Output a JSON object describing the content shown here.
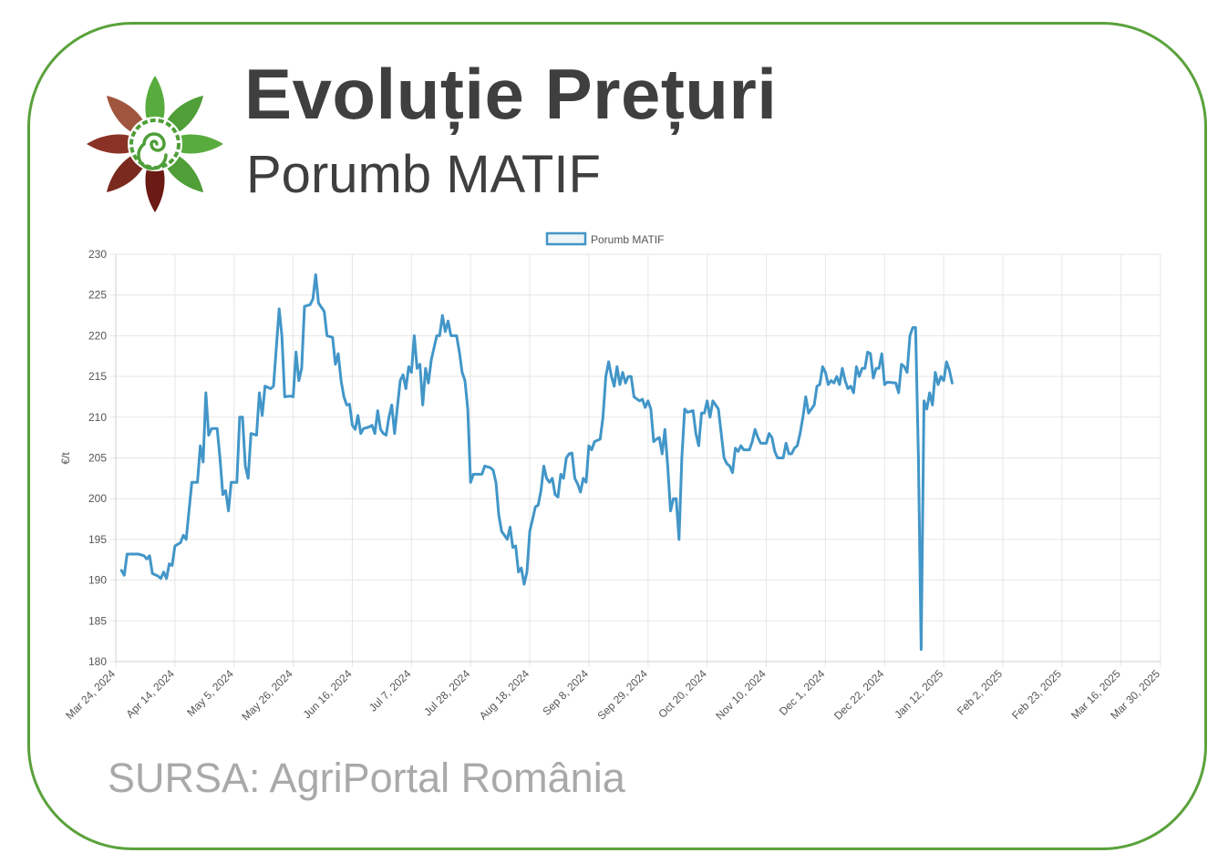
{
  "header": {
    "title": "Evoluție Prețuri",
    "subtitle": "Porumb MATIF"
  },
  "footer": {
    "source": "SURSA: AgriPortal România"
  },
  "colors": {
    "frame": "#5aa23c",
    "line": "#4296c8",
    "grid": "#e6e6e6",
    "title": "#3f3f3f",
    "source": "#a9a9a9"
  },
  "chart_data": {
    "type": "line",
    "ylabel": "€/t",
    "ylim": [
      180,
      230
    ],
    "yticks": [
      180,
      185,
      190,
      195,
      200,
      205,
      210,
      215,
      220,
      225,
      230
    ],
    "xlim": [
      "2024-03-24",
      "2025-03-30"
    ],
    "xticks": [
      "Mar 24, 2024",
      "Apr 14, 2024",
      "May 5, 2024",
      "May 26, 2024",
      "Jun 16, 2024",
      "Jul 7, 2024",
      "Jul 28, 2024",
      "Aug 18, 2024",
      "Sep 8, 2024",
      "Sep 29, 2024",
      "Oct 20, 2024",
      "Nov 10, 2024",
      "Dec 1, 2024",
      "Dec 22, 2024",
      "Jan 12, 2025",
      "Feb 2, 2025",
      "Feb 23, 2025",
      "Mar 16, 2025",
      "Mar 30, 2025"
    ],
    "grid": true,
    "legend_position": "top-center",
    "series": [
      {
        "name": "Porumb MATIF",
        "points": [
          [
            "2024-03-26",
            191.2
          ],
          [
            "2024-03-27",
            190.6
          ],
          [
            "2024-03-28",
            193.2
          ],
          [
            "2024-04-01",
            193.2
          ],
          [
            "2024-04-03",
            193.0
          ],
          [
            "2024-04-04",
            192.6
          ],
          [
            "2024-04-05",
            193.0
          ],
          [
            "2024-04-06",
            190.8
          ],
          [
            "2024-04-08",
            190.5
          ],
          [
            "2024-04-09",
            190.2
          ],
          [
            "2024-04-10",
            191.0
          ],
          [
            "2024-04-11",
            190.2
          ],
          [
            "2024-04-12",
            192.0
          ],
          [
            "2024-04-13",
            191.8
          ],
          [
            "2024-04-14",
            194.2
          ],
          [
            "2024-04-16",
            194.6
          ],
          [
            "2024-04-17",
            195.5
          ],
          [
            "2024-04-18",
            195.0
          ],
          [
            "2024-04-19",
            198.5
          ],
          [
            "2024-04-20",
            202.0
          ],
          [
            "2024-04-22",
            202.0
          ],
          [
            "2024-04-23",
            206.5
          ],
          [
            "2024-04-24",
            204.5
          ],
          [
            "2024-04-25",
            213.0
          ],
          [
            "2024-04-26",
            207.8
          ],
          [
            "2024-04-27",
            208.6
          ],
          [
            "2024-04-29",
            208.6
          ],
          [
            "2024-04-30",
            205.0
          ],
          [
            "2024-05-01",
            200.5
          ],
          [
            "2024-05-02",
            201.0
          ],
          [
            "2024-05-03",
            198.5
          ],
          [
            "2024-05-04",
            202.0
          ],
          [
            "2024-05-06",
            202.0
          ],
          [
            "2024-05-07",
            210.0
          ],
          [
            "2024-05-08",
            210.0
          ],
          [
            "2024-05-09",
            204.0
          ],
          [
            "2024-05-10",
            202.5
          ],
          [
            "2024-05-11",
            208.0
          ],
          [
            "2024-05-13",
            207.8
          ],
          [
            "2024-05-14",
            213.0
          ],
          [
            "2024-05-15",
            210.2
          ],
          [
            "2024-05-16",
            213.8
          ],
          [
            "2024-05-18",
            213.5
          ],
          [
            "2024-05-19",
            213.8
          ],
          [
            "2024-05-21",
            223.3
          ],
          [
            "2024-05-22",
            220.0
          ],
          [
            "2024-05-23",
            212.5
          ],
          [
            "2024-05-25",
            212.6
          ],
          [
            "2024-05-26",
            212.5
          ],
          [
            "2024-05-27",
            218.0
          ],
          [
            "2024-05-28",
            214.5
          ],
          [
            "2024-05-29",
            216.0
          ],
          [
            "2024-05-30",
            223.6
          ],
          [
            "2024-06-01",
            223.8
          ],
          [
            "2024-06-02",
            224.5
          ],
          [
            "2024-06-03",
            227.5
          ],
          [
            "2024-06-04",
            224.0
          ],
          [
            "2024-06-05",
            223.5
          ],
          [
            "2024-06-06",
            223.0
          ],
          [
            "2024-06-07",
            220.0
          ],
          [
            "2024-06-09",
            219.8
          ],
          [
            "2024-06-10",
            216.5
          ],
          [
            "2024-06-11",
            217.8
          ],
          [
            "2024-06-12",
            214.5
          ],
          [
            "2024-06-13",
            212.5
          ],
          [
            "2024-06-14",
            211.5
          ],
          [
            "2024-06-15",
            211.6
          ],
          [
            "2024-06-16",
            209.0
          ],
          [
            "2024-06-17",
            208.5
          ],
          [
            "2024-06-18",
            210.2
          ],
          [
            "2024-06-19",
            208.0
          ],
          [
            "2024-06-20",
            208.6
          ],
          [
            "2024-06-22",
            208.8
          ],
          [
            "2024-06-23",
            209.0
          ],
          [
            "2024-06-24",
            208.0
          ],
          [
            "2024-06-25",
            210.8
          ],
          [
            "2024-06-26",
            208.5
          ],
          [
            "2024-06-27",
            208.0
          ],
          [
            "2024-06-28",
            207.8
          ],
          [
            "2024-06-29",
            210.0
          ],
          [
            "2024-06-30",
            211.5
          ],
          [
            "2024-07-01",
            208.0
          ],
          [
            "2024-07-03",
            214.5
          ],
          [
            "2024-07-04",
            215.2
          ],
          [
            "2024-07-05",
            213.5
          ],
          [
            "2024-07-06",
            216.2
          ],
          [
            "2024-07-07",
            215.5
          ],
          [
            "2024-07-08",
            220.0
          ],
          [
            "2024-07-09",
            216.0
          ],
          [
            "2024-07-10",
            216.5
          ],
          [
            "2024-07-11",
            211.5
          ],
          [
            "2024-07-12",
            216.0
          ],
          [
            "2024-07-13",
            214.2
          ],
          [
            "2024-07-14",
            217.0
          ],
          [
            "2024-07-16",
            220.0
          ],
          [
            "2024-07-17",
            220.0
          ],
          [
            "2024-07-18",
            222.5
          ],
          [
            "2024-07-19",
            220.5
          ],
          [
            "2024-07-20",
            221.8
          ],
          [
            "2024-07-21",
            220.0
          ],
          [
            "2024-07-23",
            220.0
          ],
          [
            "2024-07-24",
            218.0
          ],
          [
            "2024-07-25",
            215.5
          ],
          [
            "2024-07-26",
            214.5
          ],
          [
            "2024-07-27",
            211.0
          ],
          [
            "2024-07-28",
            202.0
          ],
          [
            "2024-07-29",
            203.0
          ],
          [
            "2024-08-01",
            203.0
          ],
          [
            "2024-08-02",
            204.0
          ],
          [
            "2024-08-04",
            203.8
          ],
          [
            "2024-08-05",
            203.5
          ],
          [
            "2024-08-06",
            202.0
          ],
          [
            "2024-08-07",
            198.0
          ],
          [
            "2024-08-08",
            196.0
          ],
          [
            "2024-08-09",
            195.5
          ],
          [
            "2024-08-10",
            195.0
          ],
          [
            "2024-08-11",
            196.5
          ],
          [
            "2024-08-12",
            194.0
          ],
          [
            "2024-08-13",
            194.2
          ],
          [
            "2024-08-14",
            191.0
          ],
          [
            "2024-08-15",
            191.5
          ],
          [
            "2024-08-16",
            189.5
          ],
          [
            "2024-08-17",
            191.0
          ],
          [
            "2024-08-18",
            196.0
          ],
          [
            "2024-08-19",
            197.5
          ],
          [
            "2024-08-20",
            199.0
          ],
          [
            "2024-08-21",
            199.2
          ],
          [
            "2024-08-22",
            201.0
          ],
          [
            "2024-08-23",
            204.0
          ],
          [
            "2024-08-24",
            202.5
          ],
          [
            "2024-08-25",
            202.0
          ],
          [
            "2024-08-26",
            202.5
          ],
          [
            "2024-08-27",
            200.5
          ],
          [
            "2024-08-28",
            200.2
          ],
          [
            "2024-08-29",
            203.0
          ],
          [
            "2024-08-30",
            202.5
          ],
          [
            "2024-08-31",
            205.0
          ],
          [
            "2024-09-01",
            205.5
          ],
          [
            "2024-09-02",
            205.6
          ],
          [
            "2024-09-03",
            202.5
          ],
          [
            "2024-09-04",
            201.8
          ],
          [
            "2024-09-05",
            200.8
          ],
          [
            "2024-09-06",
            202.5
          ],
          [
            "2024-09-07",
            202.0
          ],
          [
            "2024-09-08",
            206.5
          ],
          [
            "2024-09-09",
            206.0
          ],
          [
            "2024-09-10",
            207.0
          ],
          [
            "2024-09-12",
            207.3
          ],
          [
            "2024-09-13",
            210.0
          ],
          [
            "2024-09-14",
            215.0
          ],
          [
            "2024-09-15",
            216.8
          ],
          [
            "2024-09-16",
            215.0
          ],
          [
            "2024-09-17",
            213.8
          ],
          [
            "2024-09-18",
            216.2
          ],
          [
            "2024-09-19",
            214.0
          ],
          [
            "2024-09-20",
            215.5
          ],
          [
            "2024-09-21",
            214.2
          ],
          [
            "2024-09-22",
            215.0
          ],
          [
            "2024-09-23",
            215.0
          ],
          [
            "2024-09-24",
            212.5
          ],
          [
            "2024-09-26",
            212.0
          ],
          [
            "2024-09-27",
            212.2
          ],
          [
            "2024-09-28",
            211.2
          ],
          [
            "2024-09-29",
            212.0
          ],
          [
            "2024-09-30",
            211.0
          ],
          [
            "2024-10-01",
            207.0
          ],
          [
            "2024-10-02",
            207.3
          ],
          [
            "2024-10-03",
            207.5
          ],
          [
            "2024-10-04",
            205.5
          ],
          [
            "2024-10-05",
            208.5
          ],
          [
            "2024-10-06",
            204.0
          ],
          [
            "2024-10-07",
            198.5
          ],
          [
            "2024-10-08",
            200.0
          ],
          [
            "2024-10-09",
            200.0
          ],
          [
            "2024-10-10",
            195.0
          ],
          [
            "2024-10-11",
            205.0
          ],
          [
            "2024-10-12",
            211.0
          ],
          [
            "2024-10-13",
            210.6
          ],
          [
            "2024-10-15",
            210.8
          ],
          [
            "2024-10-16",
            208.0
          ],
          [
            "2024-10-17",
            206.5
          ],
          [
            "2024-10-18",
            210.5
          ],
          [
            "2024-10-19",
            210.5
          ],
          [
            "2024-10-20",
            212.0
          ],
          [
            "2024-10-21",
            210.0
          ],
          [
            "2024-10-22",
            212.0
          ],
          [
            "2024-10-24",
            211.0
          ],
          [
            "2024-10-25",
            208.0
          ],
          [
            "2024-10-26",
            205.0
          ],
          [
            "2024-10-27",
            204.3
          ],
          [
            "2024-10-28",
            204.0
          ],
          [
            "2024-10-29",
            203.2
          ],
          [
            "2024-10-30",
            206.2
          ],
          [
            "2024-10-31",
            205.8
          ],
          [
            "2024-11-01",
            206.5
          ],
          [
            "2024-11-02",
            206.0
          ],
          [
            "2024-11-04",
            206.0
          ],
          [
            "2024-11-05",
            207.0
          ],
          [
            "2024-11-06",
            208.5
          ],
          [
            "2024-11-07",
            207.5
          ],
          [
            "2024-11-08",
            206.8
          ],
          [
            "2024-11-10",
            206.8
          ],
          [
            "2024-11-11",
            208.0
          ],
          [
            "2024-11-12",
            207.5
          ],
          [
            "2024-11-13",
            205.8
          ],
          [
            "2024-11-14",
            205.0
          ],
          [
            "2024-11-16",
            205.0
          ],
          [
            "2024-11-17",
            206.8
          ],
          [
            "2024-11-18",
            205.5
          ],
          [
            "2024-11-19",
            205.5
          ],
          [
            "2024-11-20",
            206.2
          ],
          [
            "2024-11-21",
            206.5
          ],
          [
            "2024-11-22",
            208.0
          ],
          [
            "2024-11-23",
            210.0
          ],
          [
            "2024-11-24",
            212.5
          ],
          [
            "2024-11-25",
            210.5
          ],
          [
            "2024-11-26",
            211.0
          ],
          [
            "2024-11-27",
            211.5
          ],
          [
            "2024-11-28",
            213.8
          ],
          [
            "2024-11-29",
            214.0
          ],
          [
            "2024-11-30",
            216.2
          ],
          [
            "2024-12-01",
            215.5
          ],
          [
            "2024-12-02",
            214.0
          ],
          [
            "2024-12-03",
            214.5
          ],
          [
            "2024-12-04",
            214.2
          ],
          [
            "2024-12-05",
            215.0
          ],
          [
            "2024-12-06",
            214.0
          ],
          [
            "2024-12-07",
            216.0
          ],
          [
            "2024-12-08",
            214.5
          ],
          [
            "2024-12-09",
            213.5
          ],
          [
            "2024-12-10",
            213.8
          ],
          [
            "2024-12-11",
            213.0
          ],
          [
            "2024-12-12",
            216.2
          ],
          [
            "2024-12-13",
            215.0
          ],
          [
            "2024-12-14",
            216.0
          ],
          [
            "2024-12-15",
            216.0
          ],
          [
            "2024-12-16",
            218.0
          ],
          [
            "2024-12-17",
            217.8
          ],
          [
            "2024-12-18",
            214.8
          ],
          [
            "2024-12-19",
            216.0
          ],
          [
            "2024-12-20",
            216.0
          ],
          [
            "2024-12-21",
            217.8
          ],
          [
            "2024-12-22",
            214.0
          ],
          [
            "2024-12-23",
            214.3
          ],
          [
            "2024-12-26",
            214.2
          ],
          [
            "2024-12-27",
            213.0
          ],
          [
            "2024-12-28",
            216.5
          ],
          [
            "2024-12-29",
            216.2
          ],
          [
            "2024-12-30",
            215.5
          ],
          [
            "2024-12-31",
            220.0
          ],
          [
            "2025-01-01",
            221.0
          ],
          [
            "2025-01-02",
            221.0
          ],
          [
            "2025-01-03",
            205.0
          ],
          [
            "2025-01-04",
            181.5
          ],
          [
            "2025-01-05",
            212.0
          ],
          [
            "2025-01-06",
            211.0
          ],
          [
            "2025-01-07",
            213.0
          ],
          [
            "2025-01-08",
            211.5
          ],
          [
            "2025-01-09",
            215.5
          ],
          [
            "2025-01-10",
            214.0
          ],
          [
            "2025-01-11",
            215.0
          ],
          [
            "2025-01-12",
            214.5
          ],
          [
            "2025-01-13",
            216.8
          ],
          [
            "2025-01-14",
            215.8
          ],
          [
            "2025-01-15",
            214.2
          ]
        ]
      }
    ]
  }
}
